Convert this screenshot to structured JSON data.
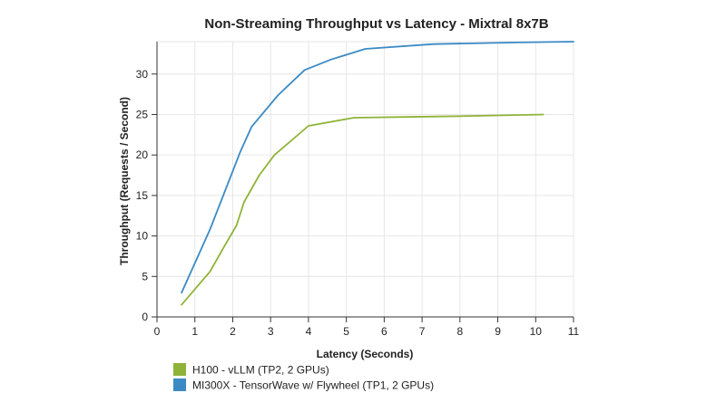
{
  "chart_data": {
    "type": "line",
    "title": "Non-Streaming Throughput vs Latency - Mixtral 8x7B",
    "xlabel": "Latency (Seconds)",
    "ylabel": "Throughput (Requests / Second)",
    "xlim": [
      0,
      11
    ],
    "ylim": [
      0,
      34
    ],
    "xticks": [
      0,
      1,
      2,
      3,
      4,
      5,
      6,
      7,
      8,
      9,
      10,
      11
    ],
    "yticks": [
      0,
      5,
      10,
      15,
      20,
      25,
      30
    ],
    "grid": true,
    "legend_position": "bottom-left",
    "series": [
      {
        "name": "H100 - vLLM (TP2, 2 GPUs)",
        "color": "#8fb339",
        "points": [
          [
            0.65,
            1.5
          ],
          [
            1.4,
            5.6
          ],
          [
            1.8,
            8.9
          ],
          [
            2.1,
            11.3
          ],
          [
            2.3,
            14.2
          ],
          [
            2.7,
            17.5
          ],
          [
            3.1,
            20.0
          ],
          [
            4.0,
            23.6
          ],
          [
            5.2,
            24.6
          ],
          [
            6.5,
            24.7
          ],
          [
            8.0,
            24.8
          ],
          [
            10.2,
            25.0
          ]
        ]
      },
      {
        "name": "MI300X - TensorWave w/ Flywheel (TP1, 2 GPUs)",
        "color": "#3b8ac4",
        "points": [
          [
            0.65,
            3.0
          ],
          [
            1.4,
            10.8
          ],
          [
            2.2,
            20.4
          ],
          [
            2.5,
            23.5
          ],
          [
            3.2,
            27.4
          ],
          [
            3.9,
            30.5
          ],
          [
            4.6,
            31.8
          ],
          [
            5.5,
            33.1
          ],
          [
            7.3,
            33.7
          ],
          [
            9.5,
            33.9
          ],
          [
            11.0,
            34.0
          ]
        ]
      }
    ]
  }
}
